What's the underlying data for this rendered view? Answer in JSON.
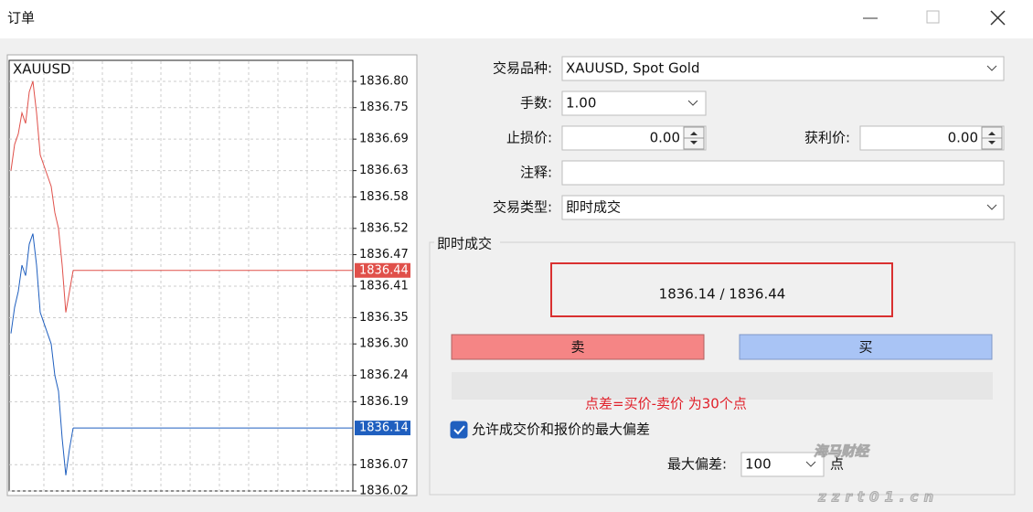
{
  "window": {
    "title": "订单"
  },
  "chart": {
    "title": "XAUUSD",
    "ylim": [
      1836.02,
      1836.84
    ],
    "yticks": [
      {
        "value": 1836.8,
        "label": "1836.80"
      },
      {
        "value": 1836.75,
        "label": "1836.75"
      },
      {
        "value": 1836.69,
        "label": "1836.69"
      },
      {
        "value": 1836.63,
        "label": "1836.63"
      },
      {
        "value": 1836.58,
        "label": "1836.58"
      },
      {
        "value": 1836.52,
        "label": "1836.52"
      },
      {
        "value": 1836.47,
        "label": "1836.47"
      },
      {
        "value": 1836.41,
        "label": "1836.41"
      },
      {
        "value": 1836.35,
        "label": "1836.35"
      },
      {
        "value": 1836.3,
        "label": "1836.30"
      },
      {
        "value": 1836.24,
        "label": "1836.24"
      },
      {
        "value": 1836.19,
        "label": "1836.19"
      },
      {
        "value": 1836.07,
        "label": "1836.07"
      },
      {
        "value": 1836.02,
        "label": "1836.02"
      }
    ],
    "grid": true,
    "series": [
      {
        "color": "#e0504a",
        "values": [
          1836.63,
          1836.68,
          1836.7,
          1836.74,
          1836.72,
          1836.78,
          1836.8,
          1836.74,
          1836.66,
          1836.64,
          1836.62,
          1836.6,
          1836.55,
          1836.52,
          1836.45,
          1836.36,
          1836.4,
          1836.44
        ]
      },
      {
        "color": "#1f5fbf",
        "values": [
          1836.32,
          1836.37,
          1836.4,
          1836.45,
          1836.43,
          1836.49,
          1836.51,
          1836.45,
          1836.36,
          1836.34,
          1836.32,
          1836.3,
          1836.24,
          1836.21,
          1836.12,
          1836.05,
          1836.1,
          1836.14
        ]
      }
    ],
    "ask_price": 1836.44,
    "bid_price": 1836.14
  },
  "form": {
    "symbol_label": "交易品种:",
    "symbol": "XAUUSD, Spot Gold",
    "volume_label": "手数:",
    "volume": "1.00",
    "stop_loss_label": "止损价:",
    "stop_loss": "0.00",
    "take_profit_label": "获利价:",
    "take_profit": "0.00",
    "comment_label": "注释:",
    "type_label": "交易类型:",
    "type": "即时成交"
  },
  "execution": {
    "group_title": "即时成交",
    "quote": "1836.14 / 1836.44",
    "sell": "卖",
    "buy": "买",
    "deviation_checkbox": "允许成交价和报价的最大偏差",
    "checked": true,
    "max_deviation_label": "最大偏差:",
    "max_deviation": "100",
    "points_unit": "点"
  },
  "annotation": "点差=买价-卖价  为30个点",
  "watermark": {
    "brand": "海马财经",
    "url": "zzrt01.cn"
  }
}
